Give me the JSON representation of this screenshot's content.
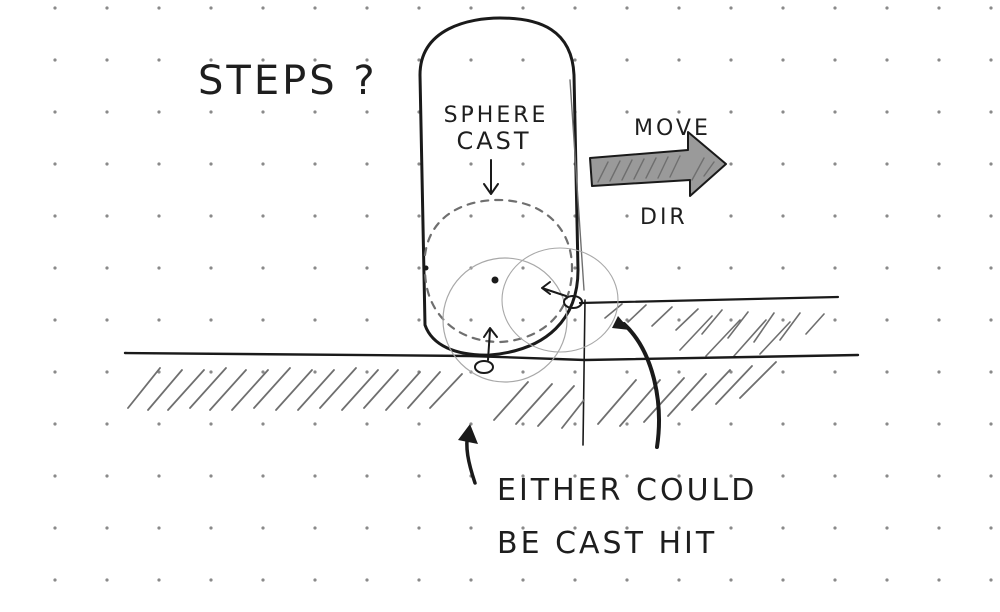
{
  "labels": {
    "question": "STEPS ?",
    "sphere_cast_line1": "SPHERE",
    "sphere_cast_line2": "CAST",
    "move_dir_line1": "MOVE",
    "move_dir_line2": "DIR",
    "either_line1": "EITHER COULD",
    "either_line2": "BE CAST HIT"
  },
  "colors": {
    "ink": "#1a1a1a",
    "pencil": "#6f6f6f",
    "grid_dot": "#8a8a8a",
    "paper": "#ffffff"
  },
  "icons": {
    "move_direction": "arrow-right-icon",
    "sphere_pointer": "arrow-down-icon",
    "hit_pointer": "curved-arrow-up-icon"
  }
}
